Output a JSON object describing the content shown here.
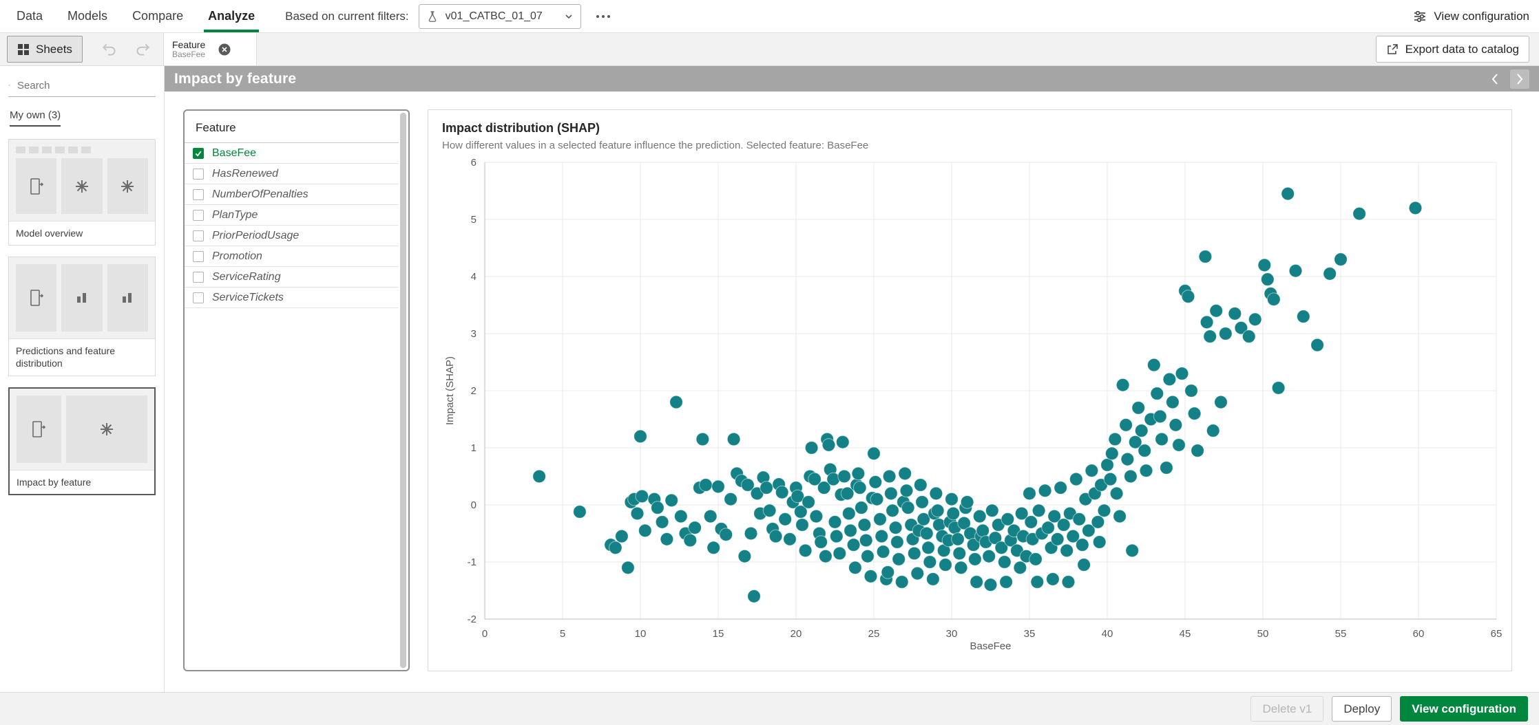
{
  "topbar": {
    "tabs": [
      {
        "label": "Data"
      },
      {
        "label": "Models"
      },
      {
        "label": "Compare"
      },
      {
        "label": "Analyze",
        "active": true
      }
    ],
    "filters_label": "Based on current filters:",
    "filter_value": "v01_CATBC_01_07",
    "view_configuration_label": "View configuration"
  },
  "toolbar": {
    "sheets_label": "Sheets",
    "tab": {
      "title": "Feature",
      "subtitle": "BaseFee"
    },
    "export_label": "Export data to catalog"
  },
  "titlebar": {
    "title": "Impact by feature"
  },
  "sidebar": {
    "search_placeholder": "Search",
    "section_label": "My own (3)",
    "sheets": [
      {
        "label": "Model overview"
      },
      {
        "label": "Predictions and feature distribution"
      },
      {
        "label": "Impact by feature",
        "selected": true
      }
    ]
  },
  "feature_panel": {
    "title": "Feature",
    "items": [
      {
        "label": "BaseFee",
        "checked": true
      },
      {
        "label": "HasRenewed",
        "checked": false
      },
      {
        "label": "NumberOfPenalties",
        "checked": false
      },
      {
        "label": "PlanType",
        "checked": false
      },
      {
        "label": "PriorPeriodUsage",
        "checked": false
      },
      {
        "label": "Promotion",
        "checked": false
      },
      {
        "label": "ServiceRating",
        "checked": false
      },
      {
        "label": "ServiceTickets",
        "checked": false
      }
    ]
  },
  "footer": {
    "delete_label": "Delete v1",
    "deploy_label": "Deploy",
    "view_configuration_label": "View configuration"
  },
  "colors": {
    "accent_green": "#00873d",
    "point_teal": "#138185",
    "titlebar_gray": "#a5a5a5",
    "toolbar_gray": "#f2f2f2"
  },
  "icons": {
    "search-icon": "magnifier",
    "experiment-icon": "flask",
    "chevron-down-icon": "v",
    "more-icon": "...",
    "sliders-icon": "adjust-sliders",
    "grid-icon": "four-squares",
    "undo-icon": "arrow-back",
    "redo-icon": "arrow-forward",
    "reset-icon": "refresh",
    "close-icon": "circled-x",
    "export-icon": "box-arrow-out",
    "chevron-left-icon": "<",
    "chevron-right-icon": ">",
    "page-icon": "sheet-page",
    "chart-placeholder-icon": "asterisk",
    "bar-chart-icon": "bars",
    "check-icon": "checkmark"
  },
  "chart_data": {
    "type": "scatter",
    "title": "Impact distribution (SHAP)",
    "subtitle": "How different values in a selected feature influence the prediction. Selected feature: BaseFee",
    "xlabel": "BaseFee",
    "ylabel": "Impact (SHAP)",
    "xlim": [
      0,
      65
    ],
    "ylim": [
      -2,
      6
    ],
    "x_ticks": [
      0,
      5,
      10,
      15,
      20,
      25,
      30,
      35,
      40,
      45,
      50,
      55,
      60,
      65
    ],
    "y_ticks": [
      -2,
      -1,
      0,
      1,
      2,
      3,
      4,
      5,
      6
    ],
    "grid": true,
    "point_color": "#138185",
    "points": [
      [
        3.5,
        0.5
      ],
      [
        6.1,
        -0.12
      ],
      [
        8.1,
        -0.7
      ],
      [
        8.4,
        -0.75
      ],
      [
        8.8,
        -0.55
      ],
      [
        9.2,
        -1.1
      ],
      [
        9.4,
        0.05
      ],
      [
        9.6,
        0.1
      ],
      [
        9.8,
        -0.15
      ],
      [
        10.0,
        1.2
      ],
      [
        10.1,
        0.15
      ],
      [
        10.3,
        -0.45
      ],
      [
        10.9,
        0.1
      ],
      [
        11.1,
        -0.05
      ],
      [
        11.4,
        -0.3
      ],
      [
        11.7,
        -0.6
      ],
      [
        12.0,
        0.08
      ],
      [
        12.3,
        1.8
      ],
      [
        12.6,
        -0.2
      ],
      [
        12.9,
        -0.5
      ],
      [
        13.2,
        -0.62
      ],
      [
        13.5,
        -0.4
      ],
      [
        13.8,
        0.3
      ],
      [
        14.0,
        1.15
      ],
      [
        14.2,
        0.35
      ],
      [
        14.5,
        -0.2
      ],
      [
        14.7,
        -0.75
      ],
      [
        15.0,
        0.32
      ],
      [
        15.2,
        -0.42
      ],
      [
        15.5,
        -0.52
      ],
      [
        15.8,
        0.1
      ],
      [
        16.0,
        1.15
      ],
      [
        16.2,
        0.55
      ],
      [
        16.5,
        0.42
      ],
      [
        16.7,
        -0.9
      ],
      [
        16.9,
        0.35
      ],
      [
        17.1,
        -0.5
      ],
      [
        17.3,
        -1.6
      ],
      [
        17.5,
        0.2
      ],
      [
        17.7,
        -0.15
      ],
      [
        17.9,
        0.48
      ],
      [
        18.1,
        0.3
      ],
      [
        18.3,
        -0.1
      ],
      [
        18.5,
        -0.42
      ],
      [
        18.7,
        -0.55
      ],
      [
        18.9,
        0.36
      ],
      [
        19.1,
        0.22
      ],
      [
        19.3,
        -0.25
      ],
      [
        19.6,
        -0.6
      ],
      [
        19.8,
        0.05
      ],
      [
        20.0,
        0.3
      ],
      [
        20.1,
        0.15
      ],
      [
        20.3,
        -0.12
      ],
      [
        20.4,
        -0.35
      ],
      [
        20.6,
        -0.8
      ],
      [
        20.8,
        0.05
      ],
      [
        20.9,
        0.5
      ],
      [
        21.0,
        1.0
      ],
      [
        21.2,
        0.45
      ],
      [
        21.3,
        -0.2
      ],
      [
        21.5,
        -0.5
      ],
      [
        21.6,
        -0.65
      ],
      [
        21.8,
        0.3
      ],
      [
        21.9,
        -0.9
      ],
      [
        22.0,
        1.15
      ],
      [
        22.1,
        1.05
      ],
      [
        22.2,
        0.62
      ],
      [
        22.4,
        0.45
      ],
      [
        22.5,
        -0.3
      ],
      [
        22.6,
        -0.55
      ],
      [
        22.8,
        -0.85
      ],
      [
        22.9,
        0.18
      ],
      [
        23.0,
        1.1
      ],
      [
        23.1,
        0.5
      ],
      [
        23.3,
        0.2
      ],
      [
        23.4,
        -0.15
      ],
      [
        23.5,
        -0.45
      ],
      [
        23.7,
        -0.7
      ],
      [
        23.8,
        -1.1
      ],
      [
        23.9,
        0.35
      ],
      [
        24.0,
        0.55
      ],
      [
        24.1,
        0.3
      ],
      [
        24.2,
        -0.05
      ],
      [
        24.4,
        -0.35
      ],
      [
        24.5,
        -0.62
      ],
      [
        24.6,
        -0.9
      ],
      [
        24.8,
        -1.25
      ],
      [
        24.9,
        0.12
      ],
      [
        25.0,
        0.9
      ],
      [
        25.1,
        0.4
      ],
      [
        25.2,
        0.1
      ],
      [
        25.4,
        -0.25
      ],
      [
        25.5,
        -0.55
      ],
      [
        25.6,
        -0.82
      ],
      [
        25.8,
        -1.3
      ],
      [
        25.9,
        -1.18
      ],
      [
        26.0,
        0.5
      ],
      [
        26.1,
        0.2
      ],
      [
        26.2,
        -0.1
      ],
      [
        26.4,
        -0.4
      ],
      [
        26.5,
        -0.65
      ],
      [
        26.6,
        -0.95
      ],
      [
        26.8,
        -1.35
      ],
      [
        26.9,
        0.05
      ],
      [
        27.0,
        0.55
      ],
      [
        27.1,
        0.25
      ],
      [
        27.2,
        -0.05
      ],
      [
        27.4,
        -0.35
      ],
      [
        27.5,
        -0.6
      ],
      [
        27.6,
        -0.85
      ],
      [
        27.8,
        -1.2
      ],
      [
        27.9,
        -0.45
      ],
      [
        28.0,
        0.35
      ],
      [
        28.1,
        0.05
      ],
      [
        28.2,
        -0.25
      ],
      [
        28.4,
        -0.5
      ],
      [
        28.5,
        -0.75
      ],
      [
        28.6,
        -1.0
      ],
      [
        28.8,
        -1.3
      ],
      [
        28.9,
        -0.15
      ],
      [
        29.0,
        0.2
      ],
      [
        29.1,
        -0.1
      ],
      [
        29.2,
        -0.35
      ],
      [
        29.4,
        -0.55
      ],
      [
        29.5,
        -0.8
      ],
      [
        29.6,
        -1.05
      ],
      [
        29.8,
        -0.62
      ],
      [
        29.9,
        -0.3
      ],
      [
        30.0,
        0.1
      ],
      [
        30.1,
        -0.15
      ],
      [
        30.2,
        -0.4
      ],
      [
        30.4,
        -0.6
      ],
      [
        30.5,
        -0.85
      ],
      [
        30.6,
        -1.1
      ],
      [
        30.8,
        -0.32
      ],
      [
        30.9,
        -0.05
      ],
      [
        31.0,
        0.05
      ],
      [
        31.2,
        -0.5
      ],
      [
        31.4,
        -0.7
      ],
      [
        31.5,
        -0.95
      ],
      [
        31.6,
        -1.35
      ],
      [
        31.8,
        -0.2
      ],
      [
        31.9,
        -0.55
      ],
      [
        32.0,
        -0.45
      ],
      [
        32.2,
        -0.65
      ],
      [
        32.4,
        -0.9
      ],
      [
        32.5,
        -1.4
      ],
      [
        32.6,
        -0.1
      ],
      [
        32.8,
        -0.58
      ],
      [
        33.0,
        -0.35
      ],
      [
        33.2,
        -0.75
      ],
      [
        33.4,
        -1.0
      ],
      [
        33.5,
        -1.35
      ],
      [
        33.6,
        -0.25
      ],
      [
        33.8,
        -0.62
      ],
      [
        34.0,
        -0.45
      ],
      [
        34.2,
        -0.8
      ],
      [
        34.4,
        -1.1
      ],
      [
        34.5,
        -0.15
      ],
      [
        34.6,
        -0.55
      ],
      [
        34.8,
        -0.9
      ],
      [
        35.0,
        0.2
      ],
      [
        35.1,
        -0.3
      ],
      [
        35.2,
        -0.6
      ],
      [
        35.4,
        -0.95
      ],
      [
        35.5,
        -1.35
      ],
      [
        35.6,
        -0.1
      ],
      [
        35.8,
        -0.5
      ],
      [
        36.0,
        0.25
      ],
      [
        36.2,
        -0.4
      ],
      [
        36.4,
        -0.75
      ],
      [
        36.5,
        -1.3
      ],
      [
        36.6,
        -0.2
      ],
      [
        36.8,
        -0.6
      ],
      [
        37.0,
        0.3
      ],
      [
        37.2,
        -0.35
      ],
      [
        37.4,
        -0.8
      ],
      [
        37.5,
        -1.35
      ],
      [
        37.6,
        -0.15
      ],
      [
        37.8,
        -0.55
      ],
      [
        38.0,
        0.45
      ],
      [
        38.2,
        -0.25
      ],
      [
        38.4,
        -0.7
      ],
      [
        38.5,
        -1.05
      ],
      [
        38.6,
        0.1
      ],
      [
        38.8,
        -0.45
      ],
      [
        39.0,
        0.6
      ],
      [
        39.2,
        0.2
      ],
      [
        39.4,
        -0.3
      ],
      [
        39.5,
        -0.65
      ],
      [
        39.6,
        0.35
      ],
      [
        39.8,
        -0.1
      ],
      [
        40.0,
        0.7
      ],
      [
        40.2,
        0.45
      ],
      [
        40.3,
        0.9
      ],
      [
        40.5,
        1.15
      ],
      [
        40.6,
        0.2
      ],
      [
        40.8,
        -0.2
      ],
      [
        41.0,
        2.1
      ],
      [
        41.2,
        1.4
      ],
      [
        41.3,
        0.8
      ],
      [
        41.5,
        0.5
      ],
      [
        41.6,
        -0.8
      ],
      [
        41.8,
        1.1
      ],
      [
        42.0,
        1.7
      ],
      [
        42.2,
        1.3
      ],
      [
        42.4,
        0.95
      ],
      [
        42.5,
        0.6
      ],
      [
        42.8,
        1.5
      ],
      [
        43.0,
        2.45
      ],
      [
        43.2,
        1.95
      ],
      [
        43.4,
        1.55
      ],
      [
        43.5,
        1.15
      ],
      [
        43.8,
        0.65
      ],
      [
        44.0,
        2.2
      ],
      [
        44.2,
        1.8
      ],
      [
        44.4,
        1.4
      ],
      [
        44.6,
        1.05
      ],
      [
        44.8,
        2.3
      ],
      [
        45.0,
        3.75
      ],
      [
        45.2,
        3.65
      ],
      [
        45.4,
        2.0
      ],
      [
        45.6,
        1.6
      ],
      [
        45.8,
        0.95
      ],
      [
        46.3,
        4.35
      ],
      [
        46.4,
        3.2
      ],
      [
        46.6,
        2.95
      ],
      [
        46.8,
        1.3
      ],
      [
        47.0,
        3.4
      ],
      [
        47.3,
        1.8
      ],
      [
        47.6,
        3.0
      ],
      [
        48.2,
        3.35
      ],
      [
        48.6,
        3.1
      ],
      [
        49.1,
        2.95
      ],
      [
        49.5,
        3.25
      ],
      [
        50.1,
        4.2
      ],
      [
        50.3,
        3.95
      ],
      [
        50.5,
        3.7
      ],
      [
        50.7,
        3.6
      ],
      [
        51.0,
        2.05
      ],
      [
        51.6,
        5.45
      ],
      [
        52.1,
        4.1
      ],
      [
        52.6,
        3.3
      ],
      [
        53.5,
        2.8
      ],
      [
        54.3,
        4.05
      ],
      [
        55.0,
        4.3
      ],
      [
        56.2,
        5.1
      ],
      [
        59.8,
        5.2
      ]
    ]
  }
}
